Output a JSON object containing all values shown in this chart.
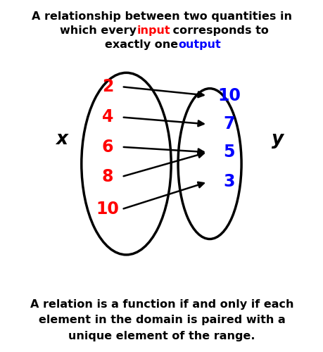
{
  "title_line1": "A relationship between two quantities in",
  "title_line2_parts": [
    [
      "which every ",
      "#000000"
    ],
    [
      "input",
      "#ff0000"
    ],
    [
      " corresponds to",
      "#000000"
    ]
  ],
  "title_line3_parts": [
    [
      "exactly one ",
      "#000000"
    ],
    [
      "output",
      "#0000ff"
    ]
  ],
  "bottom_text": "A relation is a function if and only if each\nelement in the domain is paired with a\nunique element of the range.",
  "left_label": "x",
  "right_label": "y",
  "left_values": [
    "2",
    "4",
    "6",
    "8",
    "10"
  ],
  "right_values": [
    "10",
    "7",
    "5",
    "3"
  ],
  "arrows": [
    [
      0,
      0
    ],
    [
      1,
      1
    ],
    [
      2,
      2
    ],
    [
      3,
      2
    ],
    [
      4,
      3
    ]
  ],
  "red": "#ff0000",
  "blue": "#0000ff",
  "black": "#000000",
  "bg": "#ffffff"
}
